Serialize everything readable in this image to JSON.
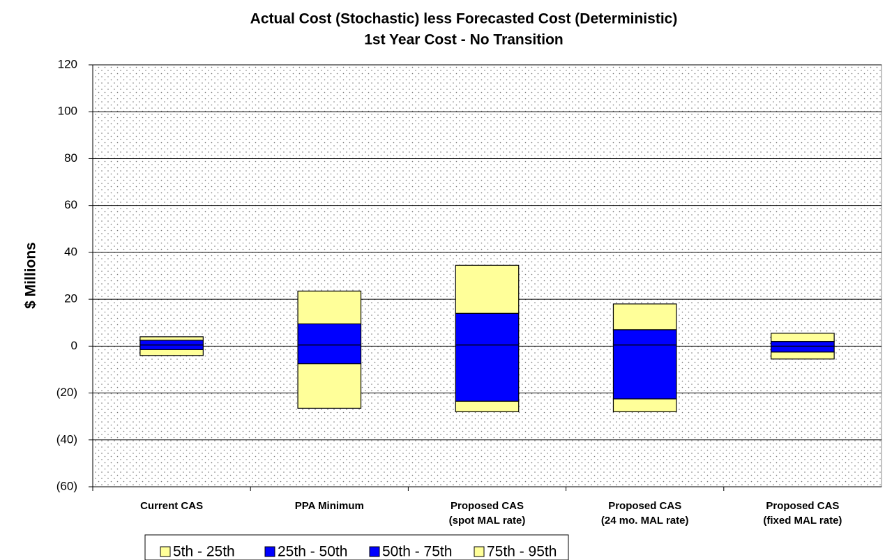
{
  "chart_data": {
    "type": "floating-stacked-bar",
    "title": "Actual Cost (Stochastic)   less   Forecasted Cost (Deterministic)",
    "subtitle": "1st Year Cost - No Transition",
    "y_label": "$ Millions",
    "categories": [
      [
        "Current CAS"
      ],
      [
        "PPA Minimum"
      ],
      [
        "Proposed CAS",
        "(spot MAL rate)"
      ],
      [
        "Proposed CAS",
        "(24 mo. MAL rate)"
      ],
      [
        "Proposed CAS",
        "(fixed MAL rate)"
      ]
    ],
    "base": {
      "values": [
        -4,
        -26.5,
        -28,
        -28,
        -5.5
      ]
    },
    "series": [
      {
        "name": "5th - 25th",
        "color": "#ffff99",
        "values": [
          2.5,
          19,
          4.5,
          5.5,
          3
        ]
      },
      {
        "name": "25th - 50th",
        "color": "#0000ff",
        "values": [
          2,
          8,
          24,
          23,
          2.5
        ]
      },
      {
        "name": "50th - 75th",
        "color": "#0000ff",
        "values": [
          2,
          9,
          13.5,
          6.5,
          2
        ]
      },
      {
        "name": "75th - 95th",
        "color": "#ffff99",
        "values": [
          1.5,
          14,
          20.5,
          11,
          3.5
        ]
      }
    ],
    "ylim": [
      -60,
      120
    ],
    "yticks": [
      {
        "value": -60,
        "label": "(60)"
      },
      {
        "value": -40,
        "label": "(40)"
      },
      {
        "value": -20,
        "label": "(20)"
      },
      0,
      20,
      40,
      60,
      80,
      100,
      120
    ],
    "grid": true
  }
}
